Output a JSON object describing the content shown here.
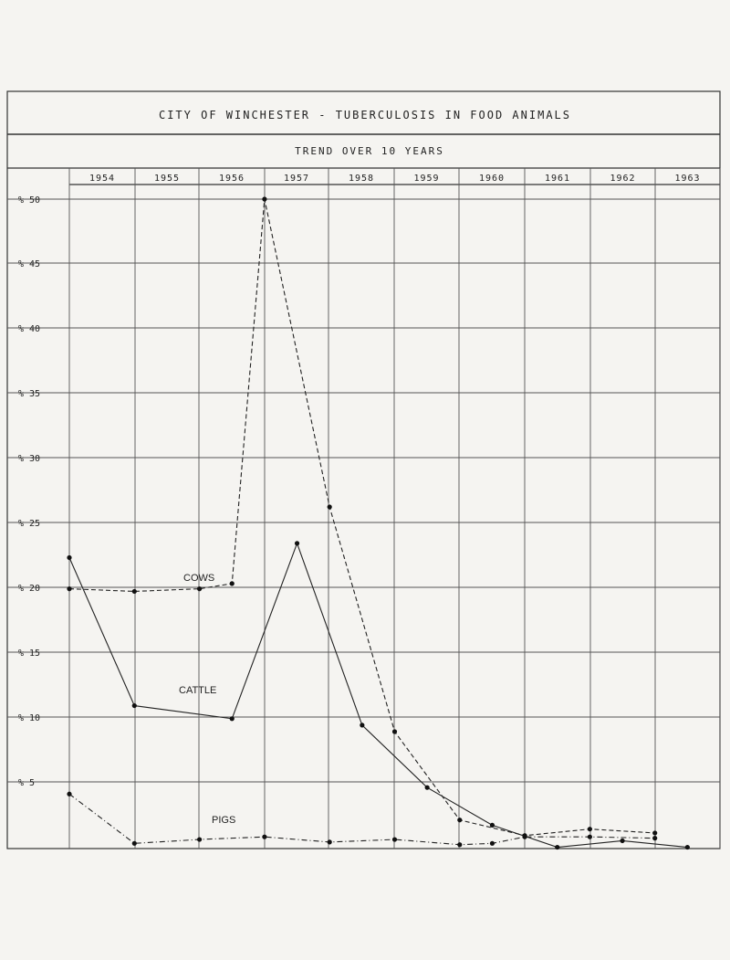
{
  "title": "CITY OF WINCHESTER - TUBERCULOSIS IN FOOD ANIMALS",
  "subtitle": "TREND OVER 10 YEARS",
  "chart_data": {
    "type": "line",
    "x": [
      "1954",
      "1955",
      "1956",
      "1957",
      "1958",
      "1959",
      "1960",
      "1961",
      "1962",
      "1963"
    ],
    "y_ticks": [
      "% 50",
      "% 45",
      "% 40",
      "% 35",
      "% 30",
      "% 25",
      "% 20",
      "% 15",
      "% 10",
      "% 5"
    ],
    "ylim": [
      0,
      50
    ],
    "grid": true,
    "series": [
      {
        "name": "COWS",
        "style": "dashed",
        "points": [
          {
            "x": 0.0,
            "y": 20.0
          },
          {
            "x": 1.0,
            "y": 19.8
          },
          {
            "x": 2.0,
            "y": 20.0
          },
          {
            "x": 2.5,
            "y": 20.4
          },
          {
            "x": 3.0,
            "y": 50.0
          },
          {
            "x": 4.0,
            "y": 26.3
          },
          {
            "x": 5.0,
            "y": 9.0
          },
          {
            "x": 6.0,
            "y": 2.2
          },
          {
            "x": 7.0,
            "y": 1.0
          },
          {
            "x": 8.0,
            "y": 1.5
          },
          {
            "x": 9.0,
            "y": 1.2
          }
        ]
      },
      {
        "name": "CATTLE",
        "style": "solid",
        "points": [
          {
            "x": 0.0,
            "y": 22.4
          },
          {
            "x": 1.0,
            "y": 11.0
          },
          {
            "x": 2.5,
            "y": 10.0
          },
          {
            "x": 3.5,
            "y": 23.5
          },
          {
            "x": 4.5,
            "y": 9.5
          },
          {
            "x": 5.5,
            "y": 4.7
          },
          {
            "x": 6.5,
            "y": 1.8
          },
          {
            "x": 7.5,
            "y": 0.1
          },
          {
            "x": 8.5,
            "y": 0.6
          },
          {
            "x": 9.5,
            "y": 0.1
          }
        ]
      },
      {
        "name": "PIGS",
        "style": "dash-dot",
        "points": [
          {
            "x": 0.0,
            "y": 4.2
          },
          {
            "x": 1.0,
            "y": 0.4
          },
          {
            "x": 2.0,
            "y": 0.7
          },
          {
            "x": 3.0,
            "y": 0.9
          },
          {
            "x": 4.0,
            "y": 0.5
          },
          {
            "x": 5.0,
            "y": 0.7
          },
          {
            "x": 6.0,
            "y": 0.3
          },
          {
            "x": 6.5,
            "y": 0.4
          },
          {
            "x": 7.0,
            "y": 0.9
          },
          {
            "x": 8.0,
            "y": 0.9
          },
          {
            "x": 9.0,
            "y": 0.8
          }
        ]
      }
    ]
  }
}
